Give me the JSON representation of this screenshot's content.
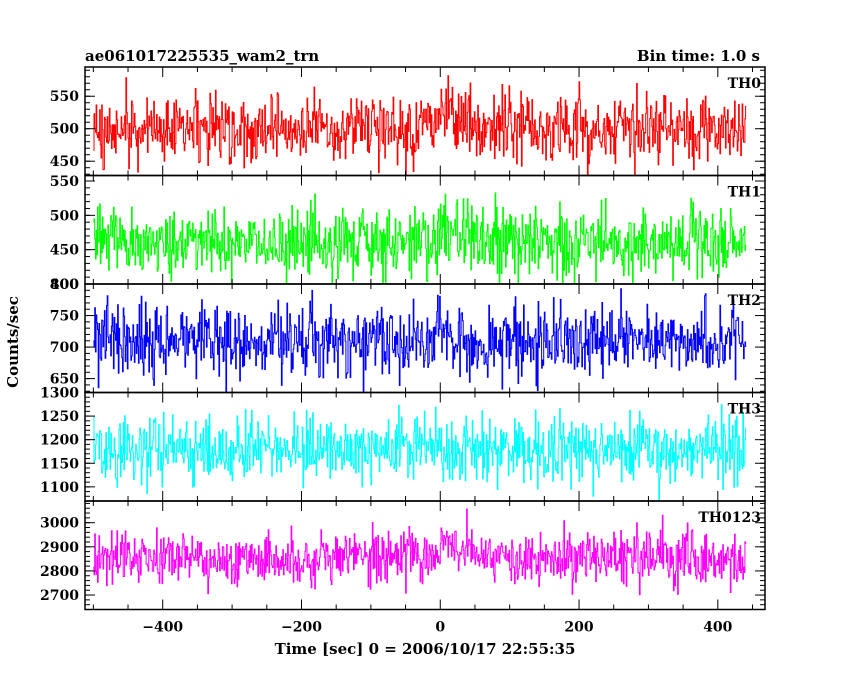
{
  "header": {
    "title_left": "ae061017225535_wam2_trn",
    "title_right": "Bin time: 1.0 s"
  },
  "axes": {
    "xlabel": "Time [sec] 0 = 2006/10/17 22:55:35",
    "ylabel": "Counts/sec"
  },
  "chart_data": {
    "type": "line",
    "title": "ae061017225535_wam2_trn",
    "bin_time": "Bin time: 1.0 s",
    "xlabel": "Time [sec] 0 = 2006/10/17 22:55:35",
    "ylabel": "Counts/sec",
    "xlim": [
      -512,
      468
    ],
    "x_ticks": [
      -400,
      -200,
      0,
      200,
      400
    ],
    "x_range_data": [
      -500,
      440
    ],
    "bin_seconds": 1.0,
    "panels": [
      {
        "name": "TH0",
        "color": "#ff0000",
        "ylim": [
          428,
          595
        ],
        "y_ticks": [
          450,
          500,
          550
        ],
        "mean": 500,
        "noise_sigma": 25,
        "features": [
          {
            "t": 0,
            "y": 595,
            "note": "peak near t=0"
          }
        ]
      },
      {
        "name": "TH1",
        "color": "#00ff00",
        "ylim": [
          400,
          558
        ],
        "y_ticks": [
          400,
          450,
          500,
          550
        ],
        "mean": 460,
        "noise_sigma": 25,
        "features": [
          {
            "t": 5,
            "y": 558,
            "note": "step up at t=0, decays by ~t=60"
          }
        ]
      },
      {
        "name": "TH2",
        "color": "#0000ff",
        "ylim": [
          628,
          800
        ],
        "y_ticks": [
          650,
          700,
          750,
          800
        ],
        "mean": 710,
        "noise_sigma": 28,
        "features": []
      },
      {
        "name": "TH3",
        "color": "#00ffff",
        "ylim": [
          1070,
          1300
        ],
        "y_ticks": [
          1100,
          1150,
          1200,
          1250,
          1300
        ],
        "mean": 1180,
        "noise_sigma": 35,
        "features": []
      },
      {
        "name": "TH0123",
        "color": "#ff00ff",
        "ylim": [
          2640,
          3090
        ],
        "y_ticks": [
          2700,
          2800,
          2900,
          3000
        ],
        "mean": 2850,
        "noise_sigma": 55,
        "features": [
          {
            "t": 5,
            "y": 3070,
            "note": "step up at t=0, decays by ~t=60"
          }
        ]
      }
    ],
    "grid": false,
    "legend": "none"
  }
}
